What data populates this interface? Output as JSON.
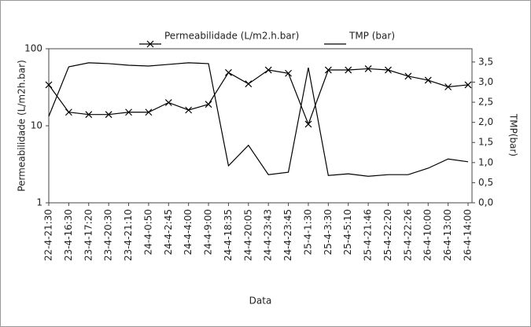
{
  "chart_data": {
    "type": "line",
    "categories": [
      "22-4-21:30",
      "23-4-16:30",
      "23-4-17:20",
      "23-4-20:30",
      "23-4-21:10",
      "24-4-0:50",
      "24-4-2:45",
      "24-4-4:00",
      "24-4-9:00",
      "24-4-18:35",
      "24-4-20:05",
      "24-4-23:43",
      "24-4-23:45",
      "25-4-1:30",
      "25-4-3:30",
      "25-4-5:10",
      "25-4-21:46",
      "25-4-22:20",
      "25-4-22:26",
      "26-4-10:00",
      "26-4-13:00",
      "26-4-14:00"
    ],
    "series": [
      {
        "name": "Permeabilidade (L/m2.h.bar)",
        "color": "#000000",
        "marker": "x",
        "values": [
          34,
          15,
          14,
          14,
          15,
          15,
          20,
          16,
          19,
          49,
          35,
          53,
          48,
          10.5,
          53,
          53,
          55,
          53,
          44,
          39,
          32,
          34
        ]
      },
      {
        "name": "TMP (bar)",
        "color": "#000000",
        "axis": "y2",
        "values": [
          2.15,
          3.38,
          3.48,
          3.46,
          3.42,
          3.4,
          3.44,
          3.48,
          3.46,
          0.92,
          1.43,
          0.7,
          0.76,
          3.36,
          0.68,
          0.72,
          0.66,
          0.7,
          0.7,
          0.86,
          1.09,
          1.02
        ]
      }
    ],
    "ylabel": "Permeabilidade (L/m2h.bar)",
    "y2label": "TMP(bar)",
    "xlabel": "Data",
    "ylog": true,
    "ylim": [
      1,
      100
    ],
    "yticks": [
      1,
      10,
      100
    ],
    "y2lim": [
      0,
      3.83
    ],
    "y2ticks": [
      {
        "value": 0,
        "label": "0,0"
      },
      {
        "value": 0.5,
        "label": "0,5"
      },
      {
        "value": 1,
        "label": "1,0"
      },
      {
        "value": 1.5,
        "label": "1,5"
      },
      {
        "value": 2,
        "label": "2,0"
      },
      {
        "value": 2.5,
        "label": "2,5"
      },
      {
        "value": 3,
        "label": "3,0"
      },
      {
        "value": 3.5,
        "label": "3,5"
      }
    ]
  }
}
